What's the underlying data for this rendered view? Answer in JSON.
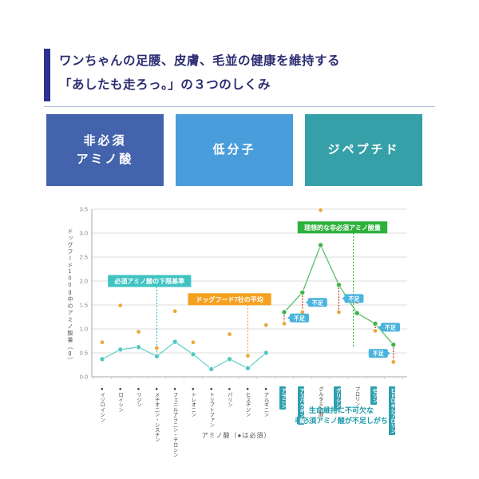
{
  "header": {
    "title_line1": "ワンちゃんの足腰、皮膚、毛並の健康を維持する",
    "title_line2": "「あしたも走ろっ。」の３つのしくみ",
    "accent_color": "#2e3192"
  },
  "pillars": [
    {
      "line1": "非必須",
      "line2": "アミノ酸",
      "bg": "#4463ad"
    },
    {
      "line1": "低分子",
      "line2": "",
      "bg": "#4a9ddb"
    },
    {
      "line1": "ジペプチド",
      "line2": "",
      "bg": "#36a0a8"
    }
  ],
  "chart_data": {
    "type": "line",
    "title": "",
    "ylabel": "ドッグフード100g中のアミノ酸量（g）",
    "xlabel": "アミノ酸（●は必須）",
    "ylim": [
      0,
      3.5
    ],
    "ytick_step": 0.5,
    "grid": true,
    "categories": [
      "イソロイシン",
      "ロイシン",
      "リジン",
      "メチオニン・シスチン",
      "フェニルアラニン・チロシン",
      "トレオニン",
      "トリプトファン",
      "バリン",
      "ヒスチジン",
      "アルギニン",
      "アラニン",
      "アスパラギン酸",
      "グルタミン酸",
      "グリシン",
      "プロリン",
      "セリン",
      "ヒドロキシプロリン"
    ],
    "essential": [
      true,
      true,
      true,
      true,
      true,
      true,
      true,
      true,
      true,
      true,
      false,
      false,
      false,
      false,
      false,
      false,
      false
    ],
    "highlighted": [
      false,
      false,
      false,
      false,
      false,
      false,
      false,
      false,
      false,
      false,
      true,
      true,
      false,
      true,
      false,
      true,
      true
    ],
    "series": [
      {
        "name": "必須アミノ酸の下限基準",
        "type": "line",
        "color": "#52c9c2",
        "values": [
          0.37,
          0.57,
          0.62,
          0.43,
          0.73,
          0.47,
          0.16,
          0.37,
          0.18,
          0.5,
          null,
          null,
          null,
          null,
          null,
          null,
          null
        ]
      },
      {
        "name": "理想的な非必須アミノ酸量",
        "type": "line",
        "color": "#3cb44a",
        "values": [
          null,
          null,
          null,
          null,
          null,
          null,
          null,
          null,
          null,
          null,
          1.35,
          1.76,
          2.75,
          1.92,
          1.33,
          1.11,
          0.67
        ]
      },
      {
        "name": "ドッグフード7社の平均",
        "type": "scatter",
        "color": "#e9a93b",
        "values": [
          0.72,
          1.49,
          0.94,
          0.6,
          1.37,
          0.72,
          null,
          0.89,
          0.44,
          1.08,
          1.11,
          1.35,
          3.48,
          1.35,
          1.56,
          0.96,
          0.31
        ]
      }
    ],
    "callouts": [
      {
        "text": "必須アミノ酸の下限基準",
        "bg": "#3fc3c3",
        "box_center_index": 2.6,
        "box_y": 2.0,
        "leader_index": 3,
        "leader_to_y": 0.48
      },
      {
        "text": "ドッグフード7社の平均",
        "bg": "#f4a120",
        "box_center_index": 7.0,
        "box_y": 1.62,
        "leader_index": 8,
        "leader_to_y": 0.48
      },
      {
        "text": "理想的な非必須アミノ酸量",
        "bg": "#2eb13c",
        "box_center_index": 13.2,
        "box_y": 3.12,
        "leader_index": 13.8,
        "leader_to_y": 0.6
      }
    ],
    "deficiency_label": "不足",
    "deficiency_badge_color": "#4ab3de",
    "deficiency_connector_color": "#c43b2a",
    "deficiencies": [
      {
        "index": 10,
        "side": "right"
      },
      {
        "index": 11,
        "side": "right"
      },
      {
        "index": 13,
        "side": "right"
      },
      {
        "index": 15,
        "side": "right"
      },
      {
        "index": 16,
        "side": "left"
      }
    ],
    "note_line1": "生命維持に不可欠な",
    "note_line2": "非必須アミノ酸が不足しがち"
  }
}
